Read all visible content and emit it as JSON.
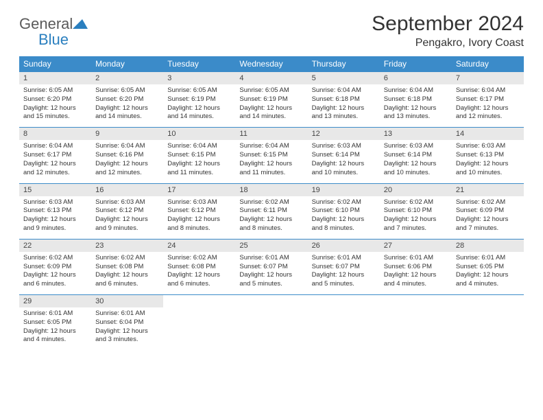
{
  "logo": {
    "text1": "General",
    "text2": "Blue"
  },
  "title": "September 2024",
  "location": "Pengakro, Ivory Coast",
  "dow": [
    "Sunday",
    "Monday",
    "Tuesday",
    "Wednesday",
    "Thursday",
    "Friday",
    "Saturday"
  ],
  "colors": {
    "header_bg": "#3b8bc9",
    "header_text": "#ffffff",
    "daynum_bg": "#e8e8e8",
    "cell_text": "#333333",
    "border": "#3b8bc9"
  },
  "weeks": [
    [
      {
        "n": "1",
        "sr": "6:05 AM",
        "ss": "6:20 PM",
        "dl": "12 hours and 15 minutes."
      },
      {
        "n": "2",
        "sr": "6:05 AM",
        "ss": "6:20 PM",
        "dl": "12 hours and 14 minutes."
      },
      {
        "n": "3",
        "sr": "6:05 AM",
        "ss": "6:19 PM",
        "dl": "12 hours and 14 minutes."
      },
      {
        "n": "4",
        "sr": "6:05 AM",
        "ss": "6:19 PM",
        "dl": "12 hours and 14 minutes."
      },
      {
        "n": "5",
        "sr": "6:04 AM",
        "ss": "6:18 PM",
        "dl": "12 hours and 13 minutes."
      },
      {
        "n": "6",
        "sr": "6:04 AM",
        "ss": "6:18 PM",
        "dl": "12 hours and 13 minutes."
      },
      {
        "n": "7",
        "sr": "6:04 AM",
        "ss": "6:17 PM",
        "dl": "12 hours and 12 minutes."
      }
    ],
    [
      {
        "n": "8",
        "sr": "6:04 AM",
        "ss": "6:17 PM",
        "dl": "12 hours and 12 minutes."
      },
      {
        "n": "9",
        "sr": "6:04 AM",
        "ss": "6:16 PM",
        "dl": "12 hours and 12 minutes."
      },
      {
        "n": "10",
        "sr": "6:04 AM",
        "ss": "6:15 PM",
        "dl": "12 hours and 11 minutes."
      },
      {
        "n": "11",
        "sr": "6:04 AM",
        "ss": "6:15 PM",
        "dl": "12 hours and 11 minutes."
      },
      {
        "n": "12",
        "sr": "6:03 AM",
        "ss": "6:14 PM",
        "dl": "12 hours and 10 minutes."
      },
      {
        "n": "13",
        "sr": "6:03 AM",
        "ss": "6:14 PM",
        "dl": "12 hours and 10 minutes."
      },
      {
        "n": "14",
        "sr": "6:03 AM",
        "ss": "6:13 PM",
        "dl": "12 hours and 10 minutes."
      }
    ],
    [
      {
        "n": "15",
        "sr": "6:03 AM",
        "ss": "6:13 PM",
        "dl": "12 hours and 9 minutes."
      },
      {
        "n": "16",
        "sr": "6:03 AM",
        "ss": "6:12 PM",
        "dl": "12 hours and 9 minutes."
      },
      {
        "n": "17",
        "sr": "6:03 AM",
        "ss": "6:12 PM",
        "dl": "12 hours and 8 minutes."
      },
      {
        "n": "18",
        "sr": "6:02 AM",
        "ss": "6:11 PM",
        "dl": "12 hours and 8 minutes."
      },
      {
        "n": "19",
        "sr": "6:02 AM",
        "ss": "6:10 PM",
        "dl": "12 hours and 8 minutes."
      },
      {
        "n": "20",
        "sr": "6:02 AM",
        "ss": "6:10 PM",
        "dl": "12 hours and 7 minutes."
      },
      {
        "n": "21",
        "sr": "6:02 AM",
        "ss": "6:09 PM",
        "dl": "12 hours and 7 minutes."
      }
    ],
    [
      {
        "n": "22",
        "sr": "6:02 AM",
        "ss": "6:09 PM",
        "dl": "12 hours and 6 minutes."
      },
      {
        "n": "23",
        "sr": "6:02 AM",
        "ss": "6:08 PM",
        "dl": "12 hours and 6 minutes."
      },
      {
        "n": "24",
        "sr": "6:02 AM",
        "ss": "6:08 PM",
        "dl": "12 hours and 6 minutes."
      },
      {
        "n": "25",
        "sr": "6:01 AM",
        "ss": "6:07 PM",
        "dl": "12 hours and 5 minutes."
      },
      {
        "n": "26",
        "sr": "6:01 AM",
        "ss": "6:07 PM",
        "dl": "12 hours and 5 minutes."
      },
      {
        "n": "27",
        "sr": "6:01 AM",
        "ss": "6:06 PM",
        "dl": "12 hours and 4 minutes."
      },
      {
        "n": "28",
        "sr": "6:01 AM",
        "ss": "6:05 PM",
        "dl": "12 hours and 4 minutes."
      }
    ],
    [
      {
        "n": "29",
        "sr": "6:01 AM",
        "ss": "6:05 PM",
        "dl": "12 hours and 4 minutes."
      },
      {
        "n": "30",
        "sr": "6:01 AM",
        "ss": "6:04 PM",
        "dl": "12 hours and 3 minutes."
      },
      null,
      null,
      null,
      null,
      null
    ]
  ],
  "labels": {
    "sunrise": "Sunrise: ",
    "sunset": "Sunset: ",
    "daylight": "Daylight: "
  }
}
